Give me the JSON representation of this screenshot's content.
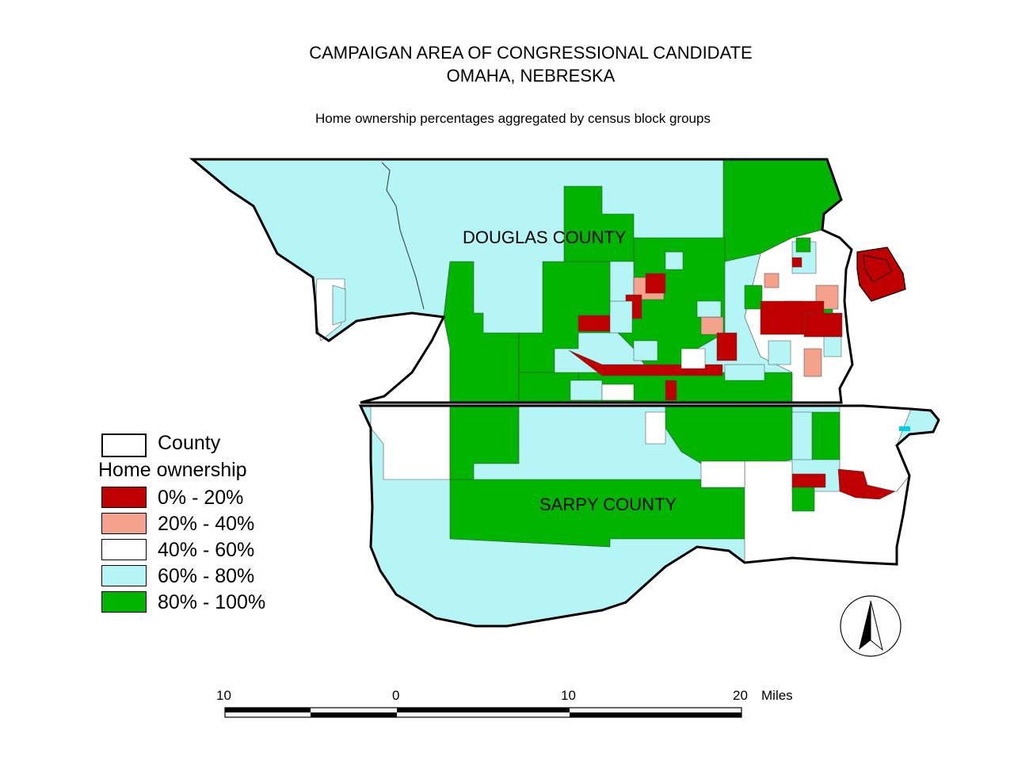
{
  "title": {
    "line1": "CAMPAIGAN AREA OF CONGRESSIONAL CANDIDATE",
    "line2": "OMAHA, NEBRESKA",
    "subtitle": "Home ownership percentages aggregated by census block groups"
  },
  "map_labels": {
    "douglas": "DOUGLAS COUNTY",
    "sarpy": "SARPY COUNTY"
  },
  "legend": {
    "county_label": "County",
    "title": "Home ownership",
    "classes": [
      {
        "label": "0% - 20%",
        "color": "#c00000"
      },
      {
        "label": "20%  - 40%",
        "color": "#f4a28c"
      },
      {
        "label": "40% - 60%",
        "color": "#ffffff"
      },
      {
        "label": "60% - 80%",
        "color": "#b5f5f5"
      },
      {
        "label": "80% - 100%",
        "color": "#00b400"
      }
    ]
  },
  "scale_bar": {
    "ticks": [
      "10",
      "0",
      "10",
      "20"
    ],
    "unit": "Miles"
  },
  "colors": {
    "dark_red": "#c00000",
    "salmon": "#f4a28c",
    "white": "#ffffff",
    "cyan": "#b5f5f5",
    "green": "#00b400"
  }
}
